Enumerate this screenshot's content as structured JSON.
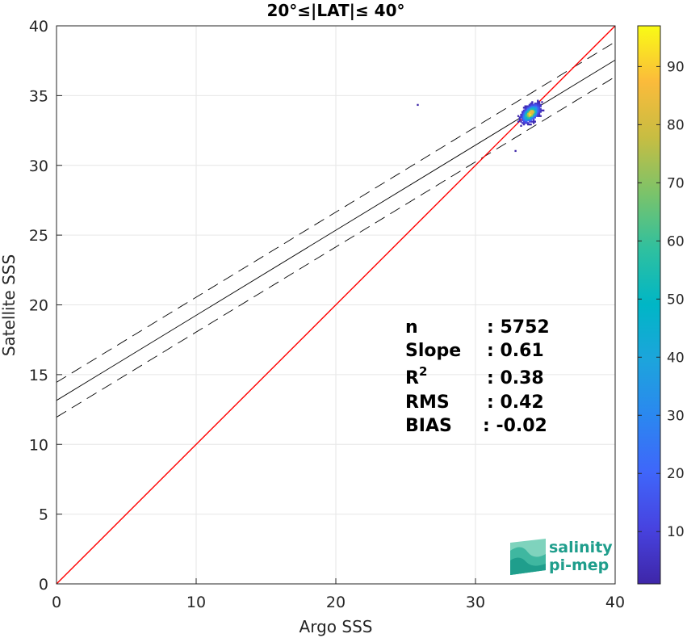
{
  "chart_data": {
    "type": "scatter",
    "title": "20°≤|LAT|≤ 40°",
    "xlabel": "Argo SSS",
    "ylabel": "Satellite SSS",
    "xlim": [
      0,
      40
    ],
    "ylim": [
      0,
      40
    ],
    "xticks": [
      "0",
      "10",
      "20",
      "30",
      "40"
    ],
    "yticks": [
      "0",
      "5",
      "10",
      "15",
      "20",
      "25",
      "30",
      "35",
      "40"
    ],
    "grid": true,
    "colorbar": {
      "range": [
        1,
        97
      ],
      "ticks": [
        "10",
        "20",
        "30",
        "40",
        "50",
        "60",
        "70",
        "80",
        "90"
      ],
      "colormap": "parula"
    },
    "density_cluster": {
      "center": [
        33.9,
        33.7
      ],
      "x_range": [
        32.2,
        35.7
      ],
      "y_range": [
        31.2,
        35.6
      ],
      "peak_count": 97,
      "outliers": [
        [
          25.8,
          34.3
        ],
        [
          32.8,
          31.0
        ]
      ]
    },
    "lines": {
      "identity": {
        "color": "#ff0000",
        "intercept": 0,
        "slope": 1
      },
      "regression": {
        "color": "#000000",
        "intercept": 13.15,
        "slope": 0.61
      },
      "upper_bound": {
        "color": "#000000",
        "style": "dashed",
        "intercept": 14.45,
        "slope": 0.61
      },
      "lower_bound": {
        "color": "#000000",
        "style": "dashed",
        "intercept": 11.95,
        "slope": 0.61
      }
    },
    "stats": [
      {
        "label": "n",
        "value": ": 5752"
      },
      {
        "label": "Slope",
        "value": ": 0.61"
      },
      {
        "label": "R",
        "sup": "2",
        "value": ": 0.38"
      },
      {
        "label": "RMS",
        "value": ": 0.42"
      },
      {
        "label": "BIAS",
        "value": ": -0.02"
      }
    ]
  },
  "logo": {
    "line1": "salinity",
    "line2": "pi-mep"
  }
}
